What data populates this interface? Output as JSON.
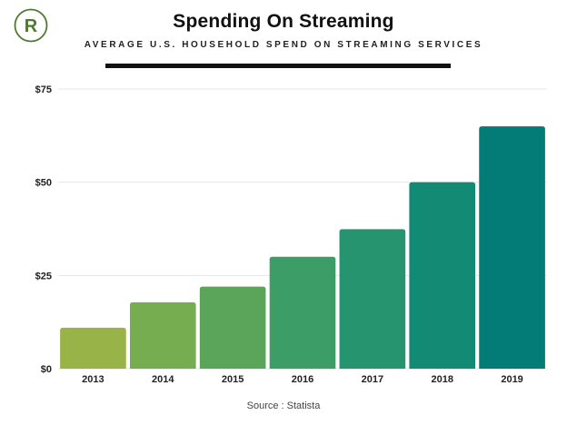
{
  "logo_letter": "R",
  "colors": {
    "logo": "#4e7a2f",
    "bars": [
      "#98b448",
      "#77ad51",
      "#5aa55a",
      "#3d9d66",
      "#279470",
      "#138a73",
      "#037b76"
    ],
    "grid": "#e6e6e6",
    "rule": "#111111"
  },
  "chart_data": {
    "type": "bar",
    "title": "Spending On Streaming",
    "subtitle": "AVERAGE U.S. HOUSEHOLD SPEND ON STREAMING SERVICES",
    "categories": [
      "2013",
      "2014",
      "2015",
      "2016",
      "2017",
      "2018",
      "2019"
    ],
    "values": [
      11,
      17.8,
      22,
      30,
      37.4,
      50,
      65
    ],
    "ylim": [
      0,
      75
    ],
    "yticks": [
      0,
      25,
      50,
      75
    ],
    "ytick_labels": [
      "$0",
      "$25",
      "$50",
      "$75"
    ],
    "xlabel": "",
    "ylabel": "",
    "grid": true,
    "source": "Source : Statista"
  }
}
